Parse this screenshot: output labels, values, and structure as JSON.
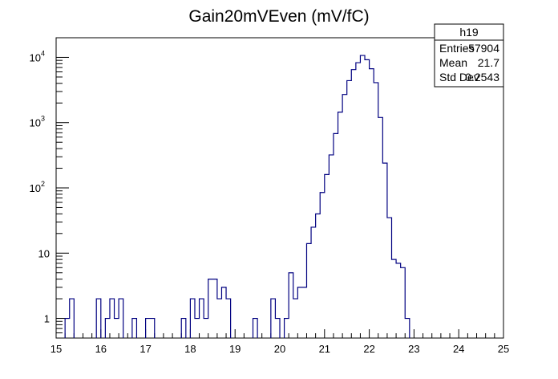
{
  "chart_data": {
    "type": "histogram",
    "title": "Gain20mVEven (mV/fC)",
    "xlabel": "",
    "ylabel": "",
    "xlim": [
      15,
      25
    ],
    "ylim": [
      0.5,
      20000
    ],
    "log_y": true,
    "bin_width": 0.1,
    "x_ticks": [
      "15",
      "16",
      "17",
      "18",
      "19",
      "20",
      "21",
      "22",
      "23",
      "24",
      "25"
    ],
    "y_ticks": [
      {
        "value": 1,
        "base": "1",
        "exp": ""
      },
      {
        "value": 10,
        "base": "10",
        "exp": ""
      },
      {
        "value": 100,
        "base": "10",
        "exp": "2"
      },
      {
        "value": 1000,
        "base": "10",
        "exp": "3"
      },
      {
        "value": 10000,
        "base": "10",
        "exp": "4"
      }
    ],
    "line_color": "#000080",
    "bins": [
      {
        "x": 15.2,
        "y": 1
      },
      {
        "x": 15.3,
        "y": 2
      },
      {
        "x": 15.9,
        "y": 2
      },
      {
        "x": 16.1,
        "y": 1
      },
      {
        "x": 16.2,
        "y": 2
      },
      {
        "x": 16.3,
        "y": 1
      },
      {
        "x": 16.4,
        "y": 2
      },
      {
        "x": 16.7,
        "y": 1
      },
      {
        "x": 17.0,
        "y": 1
      },
      {
        "x": 17.1,
        "y": 1
      },
      {
        "x": 17.8,
        "y": 1
      },
      {
        "x": 18.0,
        "y": 2
      },
      {
        "x": 18.1,
        "y": 1
      },
      {
        "x": 18.2,
        "y": 2
      },
      {
        "x": 18.3,
        "y": 1
      },
      {
        "x": 18.4,
        "y": 4
      },
      {
        "x": 18.5,
        "y": 4
      },
      {
        "x": 18.6,
        "y": 2
      },
      {
        "x": 18.7,
        "y": 3
      },
      {
        "x": 18.8,
        "y": 2
      },
      {
        "x": 19.4,
        "y": 1
      },
      {
        "x": 19.8,
        "y": 2
      },
      {
        "x": 19.9,
        "y": 1
      },
      {
        "x": 20.1,
        "y": 1
      },
      {
        "x": 20.2,
        "y": 5
      },
      {
        "x": 20.3,
        "y": 2
      },
      {
        "x": 20.4,
        "y": 3
      },
      {
        "x": 20.5,
        "y": 3
      },
      {
        "x": 20.6,
        "y": 14
      },
      {
        "x": 20.7,
        "y": 25
      },
      {
        "x": 20.8,
        "y": 40
      },
      {
        "x": 20.9,
        "y": 85
      },
      {
        "x": 21.0,
        "y": 160
      },
      {
        "x": 21.1,
        "y": 320
      },
      {
        "x": 21.2,
        "y": 680
      },
      {
        "x": 21.3,
        "y": 1450
      },
      {
        "x": 21.4,
        "y": 2700
      },
      {
        "x": 21.5,
        "y": 4400
      },
      {
        "x": 21.6,
        "y": 6500
      },
      {
        "x": 21.7,
        "y": 8300
      },
      {
        "x": 21.8,
        "y": 10700
      },
      {
        "x": 21.9,
        "y": 9200
      },
      {
        "x": 22.0,
        "y": 6700
      },
      {
        "x": 22.1,
        "y": 4100
      },
      {
        "x": 22.2,
        "y": 1200
      },
      {
        "x": 22.3,
        "y": 240
      },
      {
        "x": 22.4,
        "y": 35
      },
      {
        "x": 22.5,
        "y": 8
      },
      {
        "x": 22.6,
        "y": 7
      },
      {
        "x": 22.7,
        "y": 6
      },
      {
        "x": 22.8,
        "y": 1
      }
    ]
  },
  "stats_box": {
    "name": "h19",
    "rows": [
      {
        "label": "Entries",
        "value": "57904"
      },
      {
        "label": "Mean",
        "value": "21.7"
      },
      {
        "label": "Std Dev",
        "value": "0.2543"
      }
    ]
  }
}
